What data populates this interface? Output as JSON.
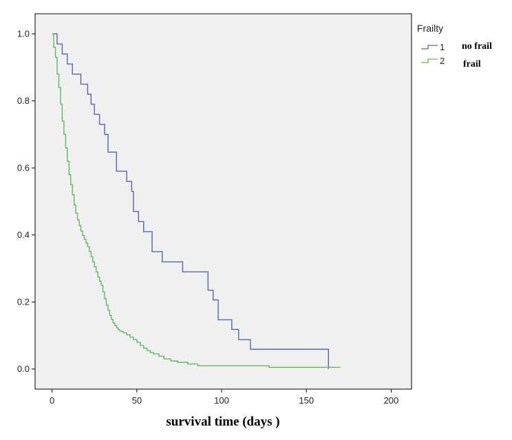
{
  "chart_data": {
    "type": "line",
    "step": true,
    "title": "",
    "xlabel": "survival time (days )",
    "ylabel": "",
    "xlim": [
      -10,
      212
    ],
    "ylim": [
      -0.06,
      1.06
    ],
    "xticks": [
      0,
      50,
      100,
      150,
      200
    ],
    "xtick_labels": [
      "0",
      "50",
      "100",
      "150",
      "200"
    ],
    "yticks": [
      0.0,
      0.2,
      0.4,
      0.6,
      0.8,
      1.0
    ],
    "ytick_labels": [
      "0.0",
      "0.2",
      "0.4",
      "0.6",
      "0.8",
      "1.0"
    ],
    "grid": false,
    "legend": {
      "title": "Frailty",
      "position": "top-right outside",
      "entries": [
        {
          "code": "1",
          "annotation": "no frail"
        },
        {
          "code": "2",
          "annotation": "frail"
        }
      ]
    },
    "series": [
      {
        "name": "1",
        "label": "no frail",
        "color": "#5a63b0",
        "x": [
          0,
          3,
          6,
          9,
          12,
          17,
          21,
          23,
          25,
          28,
          31,
          33,
          38,
          44,
          47,
          48,
          51,
          54,
          59,
          65,
          77,
          92,
          95,
          98,
          106,
          110,
          117,
          163
        ],
        "y": [
          1.0,
          0.97,
          0.94,
          0.91,
          0.88,
          0.85,
          0.82,
          0.79,
          0.76,
          0.73,
          0.7,
          0.647,
          0.59,
          0.56,
          0.53,
          0.47,
          0.44,
          0.41,
          0.35,
          0.32,
          0.29,
          0.235,
          0.206,
          0.147,
          0.118,
          0.088,
          0.059,
          0.029
        ],
        "end_x": 163,
        "end_y": 0.0
      },
      {
        "name": "2",
        "label": "frail",
        "color": "#5cbb5c",
        "x": [
          0,
          1,
          2,
          3,
          4,
          5,
          6,
          7,
          8,
          9,
          10,
          11,
          12,
          13,
          14,
          15,
          16,
          17,
          18,
          19,
          20,
          21,
          22,
          23,
          24,
          25,
          26,
          27,
          28,
          29,
          30,
          31,
          32,
          33,
          34,
          35,
          36,
          37,
          38,
          39,
          40,
          42,
          44,
          46,
          48,
          50,
          52,
          54,
          56,
          58,
          60,
          63,
          66,
          70,
          74,
          80,
          86,
          128
        ],
        "y": [
          1.0,
          0.96,
          0.93,
          0.88,
          0.84,
          0.79,
          0.74,
          0.7,
          0.66,
          0.62,
          0.58,
          0.55,
          0.52,
          0.49,
          0.465,
          0.445,
          0.428,
          0.412,
          0.398,
          0.387,
          0.376,
          0.365,
          0.35,
          0.335,
          0.32,
          0.305,
          0.29,
          0.275,
          0.262,
          0.25,
          0.23,
          0.21,
          0.19,
          0.175,
          0.16,
          0.148,
          0.138,
          0.13,
          0.123,
          0.117,
          0.113,
          0.108,
          0.102,
          0.095,
          0.088,
          0.08,
          0.07,
          0.062,
          0.055,
          0.049,
          0.045,
          0.038,
          0.03,
          0.024,
          0.02,
          0.015,
          0.01,
          0.005
        ],
        "end_x": 170,
        "end_y": 0.005
      }
    ]
  }
}
